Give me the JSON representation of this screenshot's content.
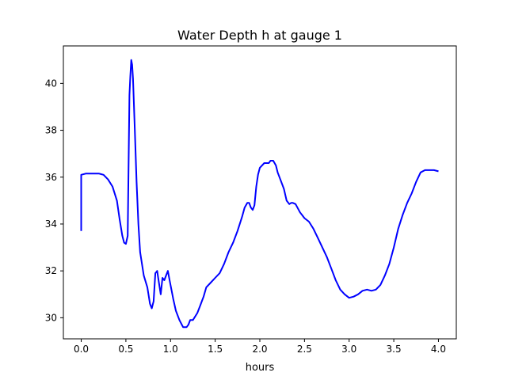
{
  "chart_data": {
    "type": "line",
    "title": "Water Depth h at gauge 1",
    "xlabel": "hours",
    "ylabel": "",
    "xlim": [
      -0.2,
      4.2
    ],
    "ylim": [
      29.1,
      41.6
    ],
    "x_ticks": [
      0.0,
      0.5,
      1.0,
      1.5,
      2.0,
      2.5,
      3.0,
      3.5,
      4.0
    ],
    "x_tick_labels": [
      "0.0",
      "0.5",
      "1.0",
      "1.5",
      "2.0",
      "2.5",
      "3.0",
      "3.5",
      "4.0"
    ],
    "y_ticks": [
      30,
      32,
      34,
      36,
      38,
      40
    ],
    "y_tick_labels": [
      "30",
      "32",
      "34",
      "36",
      "38",
      "40"
    ],
    "grid": false,
    "series": [
      {
        "color": "#0000ff",
        "x": [
          0.0,
          0.0,
          0.05,
          0.1,
          0.2,
          0.25,
          0.3,
          0.35,
          0.4,
          0.43,
          0.46,
          0.48,
          0.5,
          0.52,
          0.54,
          0.55,
          0.56,
          0.57,
          0.58,
          0.6,
          0.62,
          0.64,
          0.66,
          0.7,
          0.74,
          0.77,
          0.79,
          0.81,
          0.83,
          0.85,
          0.87,
          0.89,
          0.91,
          0.93,
          0.95,
          0.97,
          0.99,
          1.01,
          1.03,
          1.06,
          1.1,
          1.14,
          1.18,
          1.2,
          1.22,
          1.25,
          1.3,
          1.33,
          1.37,
          1.4,
          1.45,
          1.5,
          1.55,
          1.6,
          1.65,
          1.7,
          1.75,
          1.8,
          1.83,
          1.86,
          1.88,
          1.9,
          1.92,
          1.94,
          1.96,
          1.98,
          2.0,
          2.05,
          2.1,
          2.12,
          2.15,
          2.18,
          2.2,
          2.23,
          2.27,
          2.3,
          2.33,
          2.35,
          2.37,
          2.4,
          2.45,
          2.5,
          2.55,
          2.6,
          2.65,
          2.7,
          2.75,
          2.8,
          2.85,
          2.9,
          2.95,
          3.0,
          3.05,
          3.1,
          3.15,
          3.2,
          3.25,
          3.3,
          3.35,
          3.4,
          3.45,
          3.5,
          3.55,
          3.6,
          3.65,
          3.7,
          3.75,
          3.8,
          3.85,
          3.9,
          3.95,
          4.0
        ],
        "y": [
          33.7,
          36.1,
          36.15,
          36.15,
          36.15,
          36.1,
          35.9,
          35.6,
          35.0,
          34.2,
          33.5,
          33.2,
          33.15,
          33.5,
          39.5,
          40.3,
          41.0,
          40.8,
          40.2,
          38.0,
          35.8,
          34.0,
          32.8,
          31.8,
          31.3,
          30.6,
          30.4,
          30.7,
          31.9,
          32.0,
          31.5,
          31.0,
          31.7,
          31.6,
          31.8,
          32.0,
          31.6,
          31.2,
          30.8,
          30.3,
          29.9,
          29.6,
          29.6,
          29.7,
          29.9,
          29.9,
          30.2,
          30.5,
          30.9,
          31.3,
          31.5,
          31.7,
          31.9,
          32.3,
          32.8,
          33.2,
          33.7,
          34.3,
          34.7,
          34.9,
          34.9,
          34.7,
          34.6,
          34.8,
          35.6,
          36.1,
          36.4,
          36.6,
          36.6,
          36.7,
          36.7,
          36.5,
          36.2,
          35.9,
          35.5,
          35.0,
          34.85,
          34.9,
          34.9,
          34.85,
          34.5,
          34.25,
          34.1,
          33.8,
          33.4,
          33.0,
          32.6,
          32.1,
          31.6,
          31.2,
          31.0,
          30.85,
          30.9,
          31.0,
          31.15,
          31.2,
          31.15,
          31.2,
          31.4,
          31.8,
          32.3,
          33.0,
          33.8,
          34.4,
          34.9,
          35.3,
          35.8,
          36.2,
          36.3,
          36.3,
          36.3,
          36.25
        ]
      }
    ]
  }
}
